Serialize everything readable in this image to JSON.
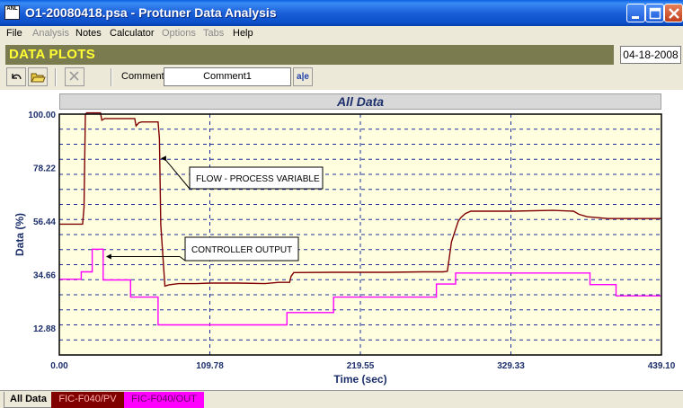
{
  "window": {
    "title": "O1-20080418.psa - Protuner Data  Analysis",
    "app_icon_label": "ANL"
  },
  "menu": [
    {
      "label": "File",
      "enabled": true
    },
    {
      "label": "Analysis",
      "enabled": false
    },
    {
      "label": "Notes",
      "enabled": true
    },
    {
      "label": "Calculator",
      "enabled": true
    },
    {
      "label": "Options",
      "enabled": false
    },
    {
      "label": "Tabs",
      "enabled": false
    },
    {
      "label": "Help",
      "enabled": true
    }
  ],
  "header": {
    "title": "DATA PLOTS",
    "date": "04-18-2008"
  },
  "toolbar": {
    "comment_label": "Comment",
    "comment_value": "Comment1",
    "font_button_label": "a|e"
  },
  "chart_data": {
    "type": "line",
    "title": "All Data",
    "xlabel": "Time (sec)",
    "ylabel": "Data (%)",
    "xlim": [
      0,
      439.1
    ],
    "ylim": [
      1.94,
      100
    ],
    "x_ticks": [
      "0.00",
      "109.78",
      "219.55",
      "329.33",
      "439.10"
    ],
    "y_ticks": [
      "100.00",
      "78.22",
      "56.44",
      "34.66",
      "12.88"
    ],
    "grid": true,
    "background": "#ffffe0",
    "annotations": [
      {
        "text": "FLOW - PROCESS VARIABLE",
        "points_to_series": 0,
        "arrow_x": 74,
        "arrow_y": 82
      },
      {
        "text": "CONTROLLER OUTPUT",
        "points_to_series": 1,
        "arrow_x": 34,
        "arrow_y": 42
      }
    ],
    "series": [
      {
        "name": "FIC-F040/PV",
        "color": "#800000",
        "x": [
          0,
          17,
          18,
          19,
          20,
          30,
          31,
          33,
          38,
          55,
          56,
          58,
          60,
          65,
          72,
          73,
          74,
          77,
          80,
          87,
          95,
          100,
          110,
          130,
          150,
          160,
          168,
          169,
          171,
          200,
          240,
          265,
          280,
          283,
          286,
          291,
          293,
          296,
          300,
          330,
          360,
          375,
          379,
          385,
          400,
          439.1
        ],
        "y": [
          55.2,
          55.2,
          62,
          100,
          100.5,
          100.5,
          97.5,
          98.2,
          98.2,
          98.2,
          95.2,
          96.5,
          96.8,
          96.8,
          96.8,
          90,
          55,
          30,
          30.5,
          31,
          31,
          31,
          31.2,
          31.2,
          31,
          31.5,
          31.5,
          34,
          35.5,
          35.6,
          35.6,
          35.8,
          35.8,
          36,
          48,
          56.5,
          58,
          59.5,
          60.5,
          60.5,
          60.8,
          60.5,
          59.2,
          58.2,
          57.5,
          57.5
        ]
      },
      {
        "name": "FIC-F040/OUT",
        "color": "#ff00ff",
        "x": [
          0,
          16,
          16,
          24,
          24,
          32,
          32,
          52,
          52,
          72,
          72,
          166,
          166,
          200,
          200,
          275,
          275,
          289,
          289,
          387,
          387,
          406,
          406,
          439.1
        ],
        "y": [
          32.8,
          32.8,
          35.8,
          35.8,
          45,
          45,
          32.5,
          32.5,
          25.5,
          25.5,
          14.2,
          14.2,
          19.2,
          19.2,
          25.5,
          25.5,
          30.8,
          30.8,
          35.3,
          35.3,
          30.6,
          30.6,
          26,
          26
        ]
      }
    ]
  },
  "tabs": [
    {
      "label": "All Data",
      "active": true
    },
    {
      "label": "FIC-F040/PV",
      "active": false
    },
    {
      "label": "FIC-F040/OUT",
      "active": false
    }
  ]
}
